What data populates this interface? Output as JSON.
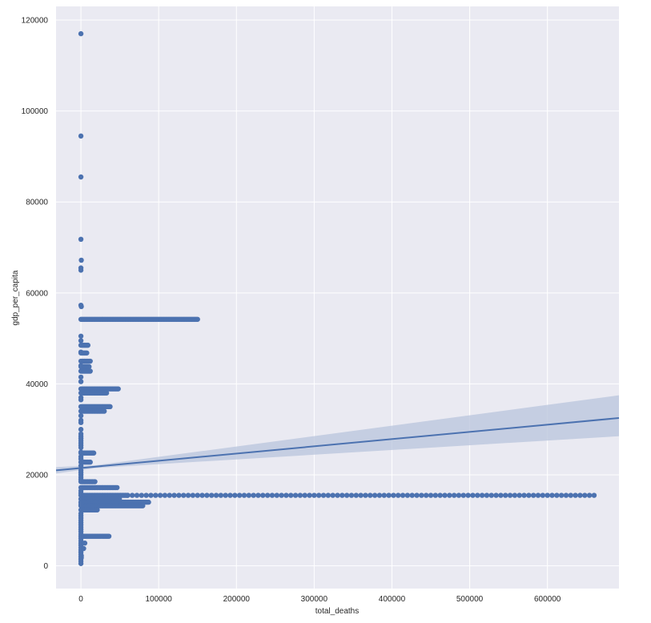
{
  "chart_data": {
    "type": "scatter",
    "xlabel": "total_deaths",
    "ylabel": "gdp_per_capita",
    "xlim": [
      -32000,
      692000
    ],
    "ylim": [
      -5000,
      123000
    ],
    "xticks": [
      0,
      100000,
      200000,
      300000,
      400000,
      500000,
      600000
    ],
    "yticks": [
      0,
      20000,
      40000,
      60000,
      80000,
      100000,
      120000
    ],
    "grid": true,
    "background": "#eaeaf2",
    "point_color": "#4c72b0",
    "regression": {
      "x0": -32000,
      "y0": 21000,
      "x1": 692000,
      "y1": 32500,
      "ci_upper_end": 37500,
      "ci_lower_end": 28500,
      "color": "#4c72b0",
      "band_color": "#b8c4dc"
    },
    "horizontal_runs": [
      {
        "y": 54200,
        "x_start": 0,
        "x_end": 150000,
        "step": 1500
      },
      {
        "y": 38900,
        "x_start": 0,
        "x_end": 48000,
        "step": 1500
      },
      {
        "y": 38000,
        "x_start": 0,
        "x_end": 33000,
        "step": 1500
      },
      {
        "y": 35000,
        "x_start": 0,
        "x_end": 38000,
        "step": 1500
      },
      {
        "y": 34000,
        "x_start": 0,
        "x_end": 30000,
        "step": 1500
      },
      {
        "y": 24800,
        "x_start": 0,
        "x_end": 17000,
        "step": 1500
      },
      {
        "y": 22800,
        "x_start": 0,
        "x_end": 12000,
        "step": 1500
      },
      {
        "y": 18500,
        "x_start": 0,
        "x_end": 19000,
        "step": 1500
      },
      {
        "y": 17200,
        "x_start": 0,
        "x_end": 47000,
        "step": 1500
      },
      {
        "y": 15500,
        "x_start": 0,
        "x_end": 60000,
        "step": 1500
      },
      {
        "y": 15500,
        "x_start": 60000,
        "x_end": 660000,
        "step": 6000
      },
      {
        "y": 14700,
        "x_start": 0,
        "x_end": 50000,
        "step": 1500
      },
      {
        "y": 14000,
        "x_start": 0,
        "x_end": 88000,
        "step": 1500
      },
      {
        "y": 13200,
        "x_start": 0,
        "x_end": 80000,
        "step": 1500
      },
      {
        "y": 12300,
        "x_start": 0,
        "x_end": 22000,
        "step": 1500
      },
      {
        "y": 6500,
        "x_start": 0,
        "x_end": 36000,
        "step": 1500
      },
      {
        "y": 48500,
        "x_start": 0,
        "x_end": 9000,
        "step": 1500
      },
      {
        "y": 46800,
        "x_start": 0,
        "x_end": 8000,
        "step": 1500
      },
      {
        "y": 45000,
        "x_start": 0,
        "x_end": 12000,
        "step": 1500
      },
      {
        "y": 43800,
        "x_start": 0,
        "x_end": 11000,
        "step": 1500
      },
      {
        "y": 42800,
        "x_start": 0,
        "x_end": 13000,
        "step": 1500
      }
    ],
    "vertical_points": [
      {
        "x": 0,
        "y": 117000
      },
      {
        "x": 0,
        "y": 94500
      },
      {
        "x": 0,
        "y": 85500
      },
      {
        "x": 0,
        "y": 71800
      },
      {
        "x": 500,
        "y": 67200
      },
      {
        "x": 0,
        "y": 65500
      },
      {
        "x": 0,
        "y": 65000
      },
      {
        "x": 0,
        "y": 57300
      },
      {
        "x": 500,
        "y": 57000
      },
      {
        "x": 0,
        "y": 50500
      },
      {
        "x": 0,
        "y": 49500
      },
      {
        "x": 0,
        "y": 47000
      },
      {
        "x": 0,
        "y": 44000
      },
      {
        "x": 0,
        "y": 41500
      },
      {
        "x": 0,
        "y": 40500
      },
      {
        "x": 0,
        "y": 37000
      },
      {
        "x": 0,
        "y": 36500
      },
      {
        "x": 0,
        "y": 33000
      },
      {
        "x": 0,
        "y": 32000
      },
      {
        "x": 0,
        "y": 31500
      },
      {
        "x": 0,
        "y": 30000
      },
      {
        "x": 0,
        "y": 29000
      },
      {
        "x": 0,
        "y": 28500
      },
      {
        "x": 0,
        "y": 28000
      },
      {
        "x": 0,
        "y": 27500
      },
      {
        "x": 0,
        "y": 27000
      },
      {
        "x": 0,
        "y": 26500
      },
      {
        "x": 0,
        "y": 26000
      },
      {
        "x": 0,
        "y": 25000
      },
      {
        "x": 0,
        "y": 24000
      },
      {
        "x": 0,
        "y": 23500
      },
      {
        "x": 0,
        "y": 22000
      },
      {
        "x": 0,
        "y": 21000
      },
      {
        "x": 0,
        "y": 20500
      },
      {
        "x": 0,
        "y": 20000
      },
      {
        "x": 0,
        "y": 19500
      },
      {
        "x": 0,
        "y": 19000
      },
      {
        "x": 0,
        "y": 16500
      },
      {
        "x": 0,
        "y": 16000
      },
      {
        "x": 0,
        "y": 13500
      },
      {
        "x": 0,
        "y": 11500
      },
      {
        "x": 0,
        "y": 11000
      },
      {
        "x": 0,
        "y": 10500
      },
      {
        "x": 0,
        "y": 10000
      },
      {
        "x": 0,
        "y": 9500
      },
      {
        "x": 0,
        "y": 9000
      },
      {
        "x": 0,
        "y": 8500
      },
      {
        "x": 0,
        "y": 8000
      },
      {
        "x": 0,
        "y": 7500
      },
      {
        "x": 0,
        "y": 7000
      },
      {
        "x": 0,
        "y": 6000
      },
      {
        "x": 0,
        "y": 5500
      },
      {
        "x": 0,
        "y": 5000
      },
      {
        "x": 5000,
        "y": 5000
      },
      {
        "x": 0,
        "y": 4500
      },
      {
        "x": 0,
        "y": 4000
      },
      {
        "x": 3500,
        "y": 3800
      },
      {
        "x": 0,
        "y": 3500
      },
      {
        "x": 0,
        "y": 3000
      },
      {
        "x": 0,
        "y": 2500
      },
      {
        "x": 0,
        "y": 2000
      },
      {
        "x": 0,
        "y": 1500
      },
      {
        "x": 0,
        "y": 1000
      },
      {
        "x": 0,
        "y": 500
      },
      {
        "x": 500,
        "y": 1800
      },
      {
        "x": 500,
        "y": 2200
      }
    ]
  }
}
